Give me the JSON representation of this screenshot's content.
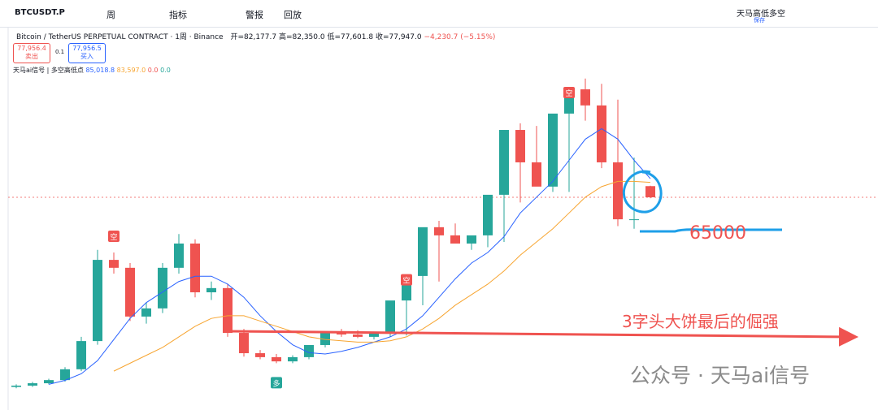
{
  "toolbar": {
    "symbol": "BTCUSDT.P",
    "interval": "周",
    "indicators": "指标",
    "alert": "警报",
    "replay": "回放",
    "layout_name": "天马高低多空",
    "save": "保存"
  },
  "legend": {
    "title": "Bitcoin / TetherUS PERPETUAL CONTRACT · 1周 · Binance",
    "open": "开=82,177.7",
    "high": "高=82,350.0",
    "low": "低=77,601.8",
    "close": "收=77,947.0",
    "change": "−4,230.7 (−5.15%)",
    "sell_price": "77,956.4",
    "sell": "卖出",
    "spread": "0.1",
    "buy_price": "77,956.5",
    "buy": "买入",
    "indicator": "天马ai信号 | 多空高低点",
    "indicator_values": [
      "85,018.8",
      "83,597.0",
      "0.0",
      "0.0"
    ]
  },
  "chart_data": {
    "type": "candlestick",
    "opens": [
      6000,
      6500,
      7400,
      8600,
      12700,
      23400,
      54200,
      51200,
      32700,
      35800,
      51200,
      60400,
      41900,
      43500,
      26500,
      18800,
      17300,
      15700,
      17300,
      21900,
      26500,
      25900,
      25000,
      26500,
      38800,
      48100,
      66600,
      63500,
      60400,
      63500,
      78900,
      103500,
      91200,
      82000,
      109700,
      118900,
      112800,
      91200,
      69600,
      82177.7
    ],
    "highs": [
      7000,
      7900,
      9100,
      13500,
      25000,
      58000,
      57000,
      53000,
      38000,
      53000,
      64000,
      62000,
      46000,
      45000,
      28000,
      20000,
      18500,
      18000,
      19000,
      23000,
      28000,
      27500,
      26500,
      28000,
      40500,
      50000,
      69000,
      68000,
      63000,
      66000,
      81000,
      106000,
      105000,
      93000,
      111500,
      123000,
      121000,
      115000,
      93000,
      82350
    ],
    "lows": [
      5500,
      6000,
      7000,
      8000,
      12000,
      22000,
      49000,
      31000,
      30000,
      34000,
      49000,
      40000,
      39000,
      25000,
      17500,
      16500,
      15000,
      15000,
      16500,
      21000,
      25000,
      24500,
      24000,
      25000,
      25500,
      37000,
      46000,
      61000,
      58000,
      59000,
      61000,
      76000,
      89000,
      80000,
      80000,
      107000,
      89000,
      67000,
      66000,
      77601.8
    ],
    "closes": [
      6500,
      7400,
      8600,
      12700,
      23400,
      54200,
      51200,
      32700,
      35800,
      51200,
      60400,
      41900,
      43500,
      26500,
      18800,
      17300,
      15700,
      17300,
      21900,
      26500,
      25900,
      25000,
      26500,
      38800,
      48100,
      66600,
      63500,
      60400,
      63500,
      78900,
      103500,
      91200,
      82000,
      109700,
      118900,
      112800,
      91200,
      69600,
      69600,
      77947
    ],
    "up_color": "#26a69a",
    "down_color": "#ef5350",
    "ma": [
      {
        "color": "#2962ff",
        "values": [
          null,
          null,
          7000,
          8500,
          11000,
          16000,
          24000,
          32000,
          38000,
          42000,
          46000,
          48000,
          48000,
          45000,
          40000,
          33000,
          27000,
          22000,
          19000,
          18500,
          19500,
          21000,
          23000,
          25000,
          28000,
          33000,
          40000,
          47000,
          53000,
          57000,
          63000,
          72000,
          78000,
          84000,
          92000,
          100000,
          104000,
          100000,
          92000,
          85018.8
        ]
      },
      {
        "color": "#f7a531",
        "values": [
          null,
          null,
          null,
          null,
          null,
          null,
          12000,
          15000,
          18000,
          21000,
          25000,
          29000,
          32000,
          33000,
          33000,
          31000,
          29000,
          27000,
          25000,
          24000,
          23500,
          23000,
          23000,
          23500,
          25000,
          28000,
          32000,
          37000,
          41000,
          45000,
          50000,
          56000,
          61000,
          66000,
          72000,
          78000,
          82000,
          84000,
          84000,
          83597
        ]
      }
    ],
    "signals": [
      {
        "label": "空",
        "index": 6
      },
      {
        "label": "空",
        "index": 24
      },
      {
        "label": "空",
        "index": 34
      },
      {
        "label": "多",
        "index": 16
      }
    ],
    "level": 65000,
    "level_label": "65000",
    "arrow_label": "3字头大饼最后的倔强",
    "watermark": "公众号 · 天马ai信号"
  }
}
